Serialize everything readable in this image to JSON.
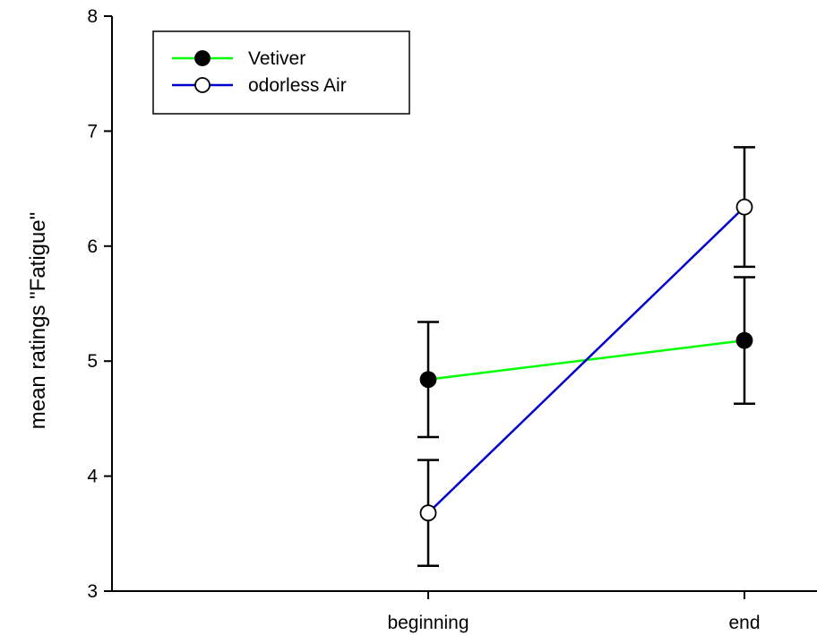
{
  "chart_data": {
    "type": "line",
    "categories": [
      "beginning",
      "end"
    ],
    "ylabel": "mean ratings \"Fatigue\"",
    "xlabel": "",
    "ylim": [
      3,
      8
    ],
    "yticks": [
      3,
      4,
      5,
      6,
      7,
      8
    ],
    "grid": false,
    "legend_position": "top-left",
    "series": [
      {
        "name": "Vetiver",
        "values": [
          4.84,
          5.18
        ],
        "error": [
          0.5,
          0.55
        ],
        "color": "#00ff00",
        "marker": "filled-circle"
      },
      {
        "name": "odorless Air",
        "values": [
          3.68,
          6.34
        ],
        "error": [
          0.46,
          0.52
        ],
        "color": "#0000cc",
        "marker": "open-circle"
      }
    ]
  }
}
